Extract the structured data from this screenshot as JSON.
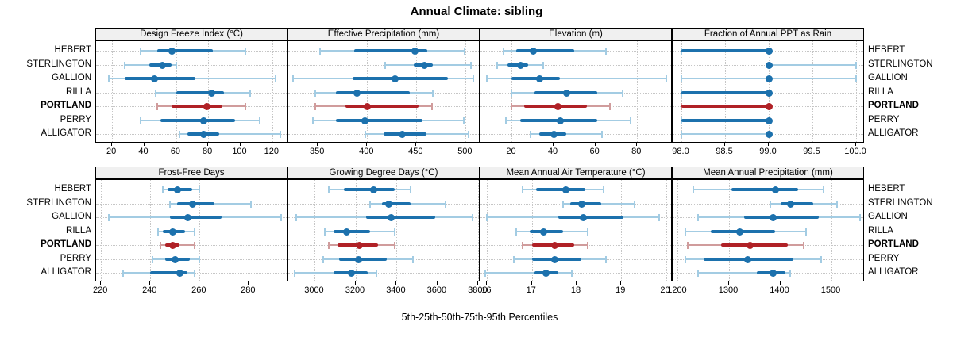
{
  "title": "Annual Climate: sibling",
  "xlabel": "5th-25th-50th-75th-95th Percentiles",
  "sites": [
    "HEBERT",
    "STERLINGTON",
    "GALLION",
    "RILLA",
    "PORTLAND",
    "PERRY",
    "ALLIGATOR"
  ],
  "highlight_site": "PORTLAND",
  "percentile_labels": [
    "5th",
    "25th",
    "50th",
    "75th",
    "95th"
  ],
  "colors": {
    "normal_strong": "#1c71ad",
    "normal_light": "#a3cce3",
    "highlight_strong": "#b02126",
    "highlight_light": "#d09c9c",
    "strip_bg": "#f0f0f0",
    "panel_border": "#000000",
    "grid": "#c6c6c6",
    "text": "#000000"
  },
  "chart_data": [
    {
      "type": "interval",
      "row": 0,
      "col": 0,
      "title": "Design Freeze Index (°C)",
      "xlim": [
        10,
        130
      ],
      "ticks": [
        20,
        40,
        60,
        80,
        100,
        120
      ],
      "tick_labels": [
        "20",
        "40",
        "60",
        "80",
        "100",
        "120"
      ],
      "series": [
        {
          "site": "HEBERT",
          "p": [
            38,
            48,
            57,
            83,
            103
          ]
        },
        {
          "site": "STERLINGTON",
          "p": [
            28,
            43,
            51,
            57,
            60
          ]
        },
        {
          "site": "GALLION",
          "p": [
            18,
            28,
            46,
            72,
            122
          ]
        },
        {
          "site": "RILLA",
          "p": [
            47,
            60,
            82,
            90,
            106
          ]
        },
        {
          "site": "PORTLAND",
          "p": [
            48,
            57,
            79,
            89,
            103
          ]
        },
        {
          "site": "PERRY",
          "p": [
            38,
            50,
            77,
            97,
            112
          ]
        },
        {
          "site": "ALLIGATOR",
          "p": [
            62,
            67,
            77,
            87,
            125
          ]
        }
      ]
    },
    {
      "type": "interval",
      "row": 0,
      "col": 1,
      "title": "Effective Precipitation (mm)",
      "xlim": [
        320,
        515
      ],
      "ticks": [
        350,
        400,
        450,
        500
      ],
      "tick_labels": [
        "350",
        "400",
        "450",
        "500"
      ],
      "series": [
        {
          "site": "HEBERT",
          "p": [
            352,
            387,
            448,
            461,
            499
          ]
        },
        {
          "site": "STERLINGTON",
          "p": [
            418,
            447,
            458,
            467,
            505
          ]
        },
        {
          "site": "GALLION",
          "p": [
            325,
            385,
            428,
            482,
            508
          ]
        },
        {
          "site": "RILLA",
          "p": [
            347,
            368,
            389,
            443,
            467
          ]
        },
        {
          "site": "PORTLAND",
          "p": [
            347,
            378,
            400,
            452,
            466
          ]
        },
        {
          "site": "PERRY",
          "p": [
            345,
            368,
            397,
            456,
            498
          ]
        },
        {
          "site": "ALLIGATOR",
          "p": [
            398,
            417,
            435,
            460,
            503
          ]
        }
      ]
    },
    {
      "type": "interval",
      "row": 0,
      "col": 2,
      "title": "Elevation (m)",
      "xlim": [
        5,
        97
      ],
      "ticks": [
        20,
        40,
        60,
        80
      ],
      "tick_labels": [
        "20",
        "40",
        "60",
        "80"
      ],
      "series": [
        {
          "site": "HEBERT",
          "p": [
            16,
            22,
            30,
            50,
            65
          ]
        },
        {
          "site": "STERLINGTON",
          "p": [
            13,
            18,
            24,
            28,
            35
          ]
        },
        {
          "site": "GALLION",
          "p": [
            8,
            20,
            33,
            43,
            94
          ]
        },
        {
          "site": "RILLA",
          "p": [
            20,
            31,
            46,
            61,
            73
          ]
        },
        {
          "site": "PORTLAND",
          "p": [
            20,
            26,
            42,
            56,
            67
          ]
        },
        {
          "site": "PERRY",
          "p": [
            17,
            24,
            43,
            61,
            77
          ]
        },
        {
          "site": "ALLIGATOR",
          "p": [
            29,
            33,
            40,
            46,
            63
          ]
        }
      ]
    },
    {
      "type": "interval",
      "row": 0,
      "col": 3,
      "title": "Fraction of Annual PPT as Rain",
      "xlim": [
        97.9,
        100.1
      ],
      "ticks": [
        98.0,
        98.5,
        99.0,
        99.5,
        100.0
      ],
      "tick_labels": [
        "98.0",
        "98.5",
        "99.0",
        "99.5",
        "100.0"
      ],
      "series": [
        {
          "site": "HEBERT",
          "p": [
            98,
            98,
            99,
            99,
            99
          ]
        },
        {
          "site": "STERLINGTON",
          "p": [
            99,
            99,
            99,
            99,
            100
          ]
        },
        {
          "site": "GALLION",
          "p": [
            98,
            99,
            99,
            99,
            100
          ]
        },
        {
          "site": "RILLA",
          "p": [
            98,
            98,
            99,
            99,
            99
          ]
        },
        {
          "site": "PORTLAND",
          "p": [
            98,
            98,
            99,
            99,
            99
          ]
        },
        {
          "site": "PERRY",
          "p": [
            98,
            98,
            99,
            99,
            99
          ]
        },
        {
          "site": "ALLIGATOR",
          "p": [
            98,
            99,
            99,
            99,
            99
          ]
        }
      ]
    },
    {
      "type": "interval",
      "row": 1,
      "col": 0,
      "title": "Frost-Free Days",
      "xlim": [
        218,
        296
      ],
      "ticks": [
        220,
        240,
        260,
        280
      ],
      "tick_labels": [
        "220",
        "240",
        "260",
        "280"
      ],
      "series": [
        {
          "site": "HEBERT",
          "p": [
            245,
            247,
            251,
            257,
            260
          ]
        },
        {
          "site": "STERLINGTON",
          "p": [
            248,
            251,
            257,
            266,
            281
          ]
        },
        {
          "site": "GALLION",
          "p": [
            223,
            248,
            255,
            269,
            293
          ]
        },
        {
          "site": "RILLA",
          "p": [
            243,
            245,
            249,
            254,
            258
          ]
        },
        {
          "site": "PORTLAND",
          "p": [
            244,
            246,
            249,
            252,
            258
          ]
        },
        {
          "site": "PERRY",
          "p": [
            241,
            246,
            250,
            256,
            260
          ]
        },
        {
          "site": "ALLIGATOR",
          "p": [
            229,
            240,
            252,
            255,
            258
          ]
        }
      ]
    },
    {
      "type": "interval",
      "row": 1,
      "col": 1,
      "title": "Growing Degree Days (°C)",
      "xlim": [
        2870,
        3810
      ],
      "ticks": [
        3000,
        3200,
        3400,
        3600,
        3800
      ],
      "tick_labels": [
        "3000",
        "3200",
        "3400",
        "3600",
        "3800"
      ],
      "series": [
        {
          "site": "HEBERT",
          "p": [
            3070,
            3140,
            3285,
            3390,
            3470
          ]
        },
        {
          "site": "STERLINGTON",
          "p": [
            3270,
            3330,
            3360,
            3470,
            3640
          ]
        },
        {
          "site": "GALLION",
          "p": [
            2910,
            3250,
            3370,
            3590,
            3770
          ]
        },
        {
          "site": "RILLA",
          "p": [
            3050,
            3090,
            3155,
            3270,
            3390
          ]
        },
        {
          "site": "PORTLAND",
          "p": [
            3070,
            3110,
            3215,
            3310,
            3390
          ]
        },
        {
          "site": "PERRY",
          "p": [
            3040,
            3120,
            3210,
            3350,
            3480
          ]
        },
        {
          "site": "ALLIGATOR",
          "p": [
            2900,
            3090,
            3175,
            3260,
            3300
          ]
        }
      ]
    },
    {
      "type": "interval",
      "row": 1,
      "col": 2,
      "title": "Mean Annual Air Temperature (°C)",
      "xlim": [
        15.85,
        20.15
      ],
      "ticks": [
        16,
        17,
        18,
        19,
        20
      ],
      "tick_labels": [
        "16",
        "17",
        "18",
        "19",
        "20"
      ],
      "series": [
        {
          "site": "HEBERT",
          "p": [
            16.8,
            17.1,
            17.75,
            18.2,
            18.6
          ]
        },
        {
          "site": "STERLINGTON",
          "p": [
            17.7,
            17.85,
            18.1,
            18.55,
            19.3
          ]
        },
        {
          "site": "GALLION",
          "p": [
            16.0,
            17.6,
            18.15,
            19.05,
            19.85
          ]
        },
        {
          "site": "RILLA",
          "p": [
            16.65,
            16.95,
            17.25,
            17.7,
            18.25
          ]
        },
        {
          "site": "PORTLAND",
          "p": [
            16.8,
            17.0,
            17.5,
            17.95,
            18.25
          ]
        },
        {
          "site": "PERRY",
          "p": [
            16.6,
            17.0,
            17.5,
            18.1,
            18.65
          ]
        },
        {
          "site": "ALLIGATOR",
          "p": [
            15.95,
            17.05,
            17.3,
            17.6,
            17.9
          ]
        }
      ]
    },
    {
      "type": "interval",
      "row": 1,
      "col": 3,
      "title": "Mean Annual Precipitation (mm)",
      "xlim": [
        1190,
        1565
      ],
      "ticks": [
        1200,
        1300,
        1400,
        1500
      ],
      "tick_labels": [
        "1200",
        "1300",
        "1400",
        "1500"
      ],
      "series": [
        {
          "site": "HEBERT",
          "p": [
            1230,
            1305,
            1390,
            1435,
            1485
          ]
        },
        {
          "site": "STERLINGTON",
          "p": [
            1380,
            1400,
            1420,
            1465,
            1510
          ]
        },
        {
          "site": "GALLION",
          "p": [
            1240,
            1330,
            1385,
            1475,
            1555
          ]
        },
        {
          "site": "RILLA",
          "p": [
            1215,
            1265,
            1320,
            1390,
            1450
          ]
        },
        {
          "site": "PORTLAND",
          "p": [
            1220,
            1285,
            1340,
            1415,
            1445
          ]
        },
        {
          "site": "PERRY",
          "p": [
            1215,
            1250,
            1335,
            1425,
            1480
          ]
        },
        {
          "site": "ALLIGATOR",
          "p": [
            1240,
            1355,
            1385,
            1410,
            1420
          ]
        }
      ]
    }
  ]
}
